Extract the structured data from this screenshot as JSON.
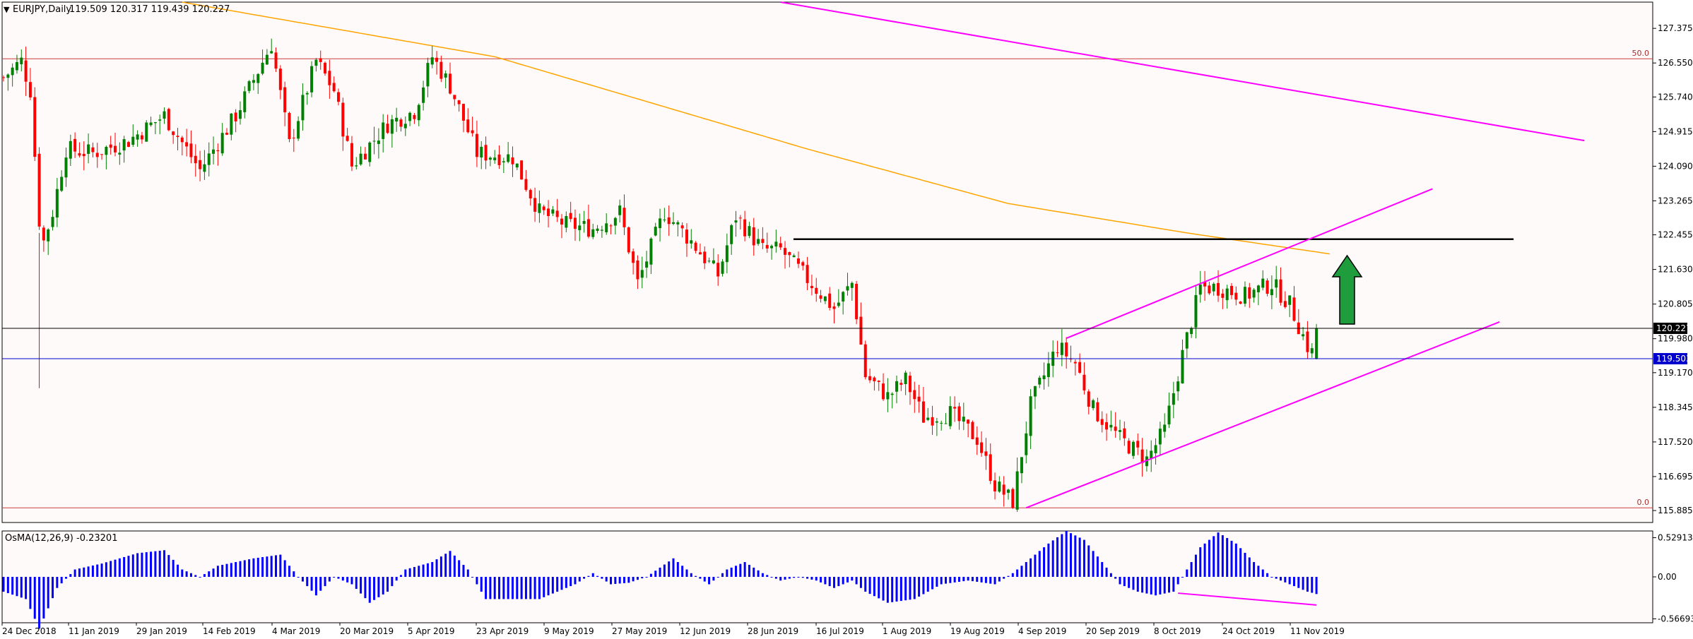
{
  "header": {
    "symbol": "EURJPY,Daily",
    "ohlc": "119.509 120.317 119.439 120.227",
    "indicator": "OsMA(12,26,9) -0.23201"
  },
  "colors": {
    "background": "#fffafa",
    "bull": "#008000",
    "bear": "#ff0000",
    "osma": "#0000ff",
    "channel": "#ff00ff",
    "ma": "#ffa500",
    "resistance": "#000000",
    "bid_line": "#0000cd",
    "arrow": "#1f9d3c"
  },
  "chart_data": [
    {
      "type": "candlestick",
      "symbol": "EURJPY",
      "timeframe": "Daily",
      "ylim": [
        115.6,
        128.0
      ],
      "y_ticks": [
        "127.375",
        "126.550",
        "125.740",
        "124.915",
        "124.090",
        "123.265",
        "122.455",
        "121.630",
        "120.805",
        "119.980",
        "119.170",
        "118.345",
        "117.520",
        "116.695",
        "115.885"
      ],
      "x_ticks": [
        "24 Dec 2018",
        "11 Jan 2019",
        "29 Jan 2019",
        "14 Feb 2019",
        "4 Mar 2019",
        "20 Mar 2019",
        "5 Apr 2019",
        "23 Apr 2019",
        "9 May 2019",
        "27 May 2019",
        "12 Jun 2019",
        "28 Jun 2019",
        "16 Jul 2019",
        "1 Aug 2019",
        "19 Aug 2019",
        "4 Sep 2019",
        "20 Sep 2019",
        "8 Oct 2019",
        "24 Oct 2019",
        "11 Nov 2019"
      ],
      "last_price": "120.227",
      "bid_price": "119.503",
      "fib_levels": [
        {
          "label": "50.0",
          "value": 126.65
        },
        {
          "label": "0.0",
          "value": 115.95
        }
      ],
      "resistance_level": 122.35,
      "close_path": [
        [
          0,
          126.2
        ],
        [
          4,
          126.6
        ],
        [
          6,
          125.9
        ],
        [
          8,
          122.8
        ],
        [
          9,
          122.3
        ],
        [
          11,
          123.0
        ],
        [
          14,
          124.5
        ],
        [
          20,
          124.4
        ],
        [
          28,
          124.7
        ],
        [
          36,
          125.3
        ],
        [
          44,
          124.0
        ],
        [
          52,
          125.3
        ],
        [
          60,
          127.0
        ],
        [
          64,
          124.6
        ],
        [
          70,
          126.6
        ],
        [
          74,
          125.9
        ],
        [
          78,
          124.1
        ],
        [
          86,
          125.1
        ],
        [
          92,
          125.4
        ],
        [
          96,
          126.7
        ],
        [
          100,
          126.0
        ],
        [
          106,
          124.4
        ],
        [
          114,
          124.3
        ],
        [
          120,
          123.0
        ],
        [
          126,
          122.7
        ],
        [
          132,
          122.6
        ],
        [
          138,
          123.0
        ],
        [
          142,
          121.3
        ],
        [
          148,
          123.0
        ],
        [
          154,
          122.3
        ],
        [
          160,
          121.5
        ],
        [
          164,
          122.9
        ],
        [
          170,
          122.1
        ],
        [
          174,
          122.1
        ],
        [
          180,
          121.4
        ],
        [
          186,
          120.7
        ],
        [
          190,
          121.3
        ],
        [
          193,
          119.1
        ],
        [
          198,
          118.6
        ],
        [
          202,
          119.0
        ],
        [
          206,
          118.1
        ],
        [
          212,
          118.2
        ],
        [
          218,
          117.6
        ],
        [
          222,
          116.5
        ],
        [
          226,
          116.1
        ],
        [
          230,
          118.4
        ],
        [
          236,
          119.8
        ],
        [
          240,
          119.4
        ],
        [
          244,
          118.3
        ],
        [
          250,
          117.6
        ],
        [
          256,
          117.1
        ],
        [
          260,
          117.8
        ],
        [
          264,
          119.6
        ],
        [
          268,
          121.2
        ],
        [
          272,
          121.2
        ],
        [
          278,
          121.0
        ],
        [
          284,
          121.3
        ],
        [
          288,
          120.8
        ],
        [
          292,
          119.8
        ],
        [
          294,
          119.5
        ]
      ],
      "ma200_path": [
        [
          40,
          128.0
        ],
        [
          110,
          126.7
        ],
        [
          180,
          124.5
        ],
        [
          225,
          123.2
        ],
        [
          265,
          122.5
        ],
        [
          297,
          122.0
        ]
      ],
      "trendlines": [
        {
          "name": "upper-channel",
          "from": [
            238,
            119.99
          ],
          "to": [
            320,
            123.55
          ]
        },
        {
          "name": "lower-channel",
          "from": [
            229,
            115.95
          ],
          "to": [
            335,
            120.38
          ]
        },
        {
          "name": "long-downtrend",
          "from": [
            174,
            128.0
          ],
          "to": [
            354,
            124.7
          ]
        }
      ]
    },
    {
      "type": "bar",
      "name": "OsMA(12,26,9)",
      "value": "-0.23201",
      "ylim": [
        -0.62,
        0.62
      ],
      "y_ticks": [
        "0.52913",
        "0.00",
        "-0.56693"
      ],
      "anchors": [
        [
          0,
          -0.2
        ],
        [
          5,
          -0.3
        ],
        [
          8,
          -0.7
        ],
        [
          12,
          -0.15
        ],
        [
          16,
          0.1
        ],
        [
          22,
          0.18
        ],
        [
          30,
          0.32
        ],
        [
          36,
          0.36
        ],
        [
          40,
          0.1
        ],
        [
          44,
          0.0
        ],
        [
          48,
          0.15
        ],
        [
          56,
          0.25
        ],
        [
          62,
          0.3
        ],
        [
          66,
          0.0
        ],
        [
          70,
          -0.25
        ],
        [
          74,
          0.0
        ],
        [
          78,
          -0.1
        ],
        [
          82,
          -0.35
        ],
        [
          86,
          -0.2
        ],
        [
          90,
          0.1
        ],
        [
          96,
          0.2
        ],
        [
          100,
          0.35
        ],
        [
          104,
          0.1
        ],
        [
          108,
          -0.3
        ],
        [
          114,
          -0.3
        ],
        [
          120,
          -0.3
        ],
        [
          124,
          -0.2
        ],
        [
          128,
          -0.1
        ],
        [
          132,
          0.05
        ],
        [
          136,
          -0.1
        ],
        [
          140,
          -0.08
        ],
        [
          144,
          0.0
        ],
        [
          150,
          0.25
        ],
        [
          154,
          0.05
        ],
        [
          158,
          -0.1
        ],
        [
          162,
          0.1
        ],
        [
          166,
          0.2
        ],
        [
          170,
          0.05
        ],
        [
          174,
          -0.05
        ],
        [
          178,
          0.0
        ],
        [
          182,
          -0.05
        ],
        [
          186,
          -0.15
        ],
        [
          190,
          -0.05
        ],
        [
          193,
          -0.2
        ],
        [
          198,
          -0.35
        ],
        [
          204,
          -0.3
        ],
        [
          210,
          -0.1
        ],
        [
          216,
          -0.05
        ],
        [
          222,
          -0.1
        ],
        [
          226,
          0.05
        ],
        [
          230,
          0.25
        ],
        [
          234,
          0.45
        ],
        [
          238,
          0.62
        ],
        [
          242,
          0.5
        ],
        [
          246,
          0.2
        ],
        [
          250,
          -0.1
        ],
        [
          254,
          -0.2
        ],
        [
          258,
          -0.25
        ],
        [
          262,
          -0.2
        ],
        [
          264,
          0.0
        ],
        [
          268,
          0.4
        ],
        [
          272,
          0.6
        ],
        [
          276,
          0.45
        ],
        [
          280,
          0.2
        ],
        [
          284,
          0.0
        ],
        [
          288,
          -0.1
        ],
        [
          292,
          -0.2
        ],
        [
          294,
          -0.23
        ]
      ],
      "divergence_line": {
        "from": [
          263,
          -0.22
        ],
        "to": [
          294,
          -0.38
        ]
      }
    }
  ]
}
